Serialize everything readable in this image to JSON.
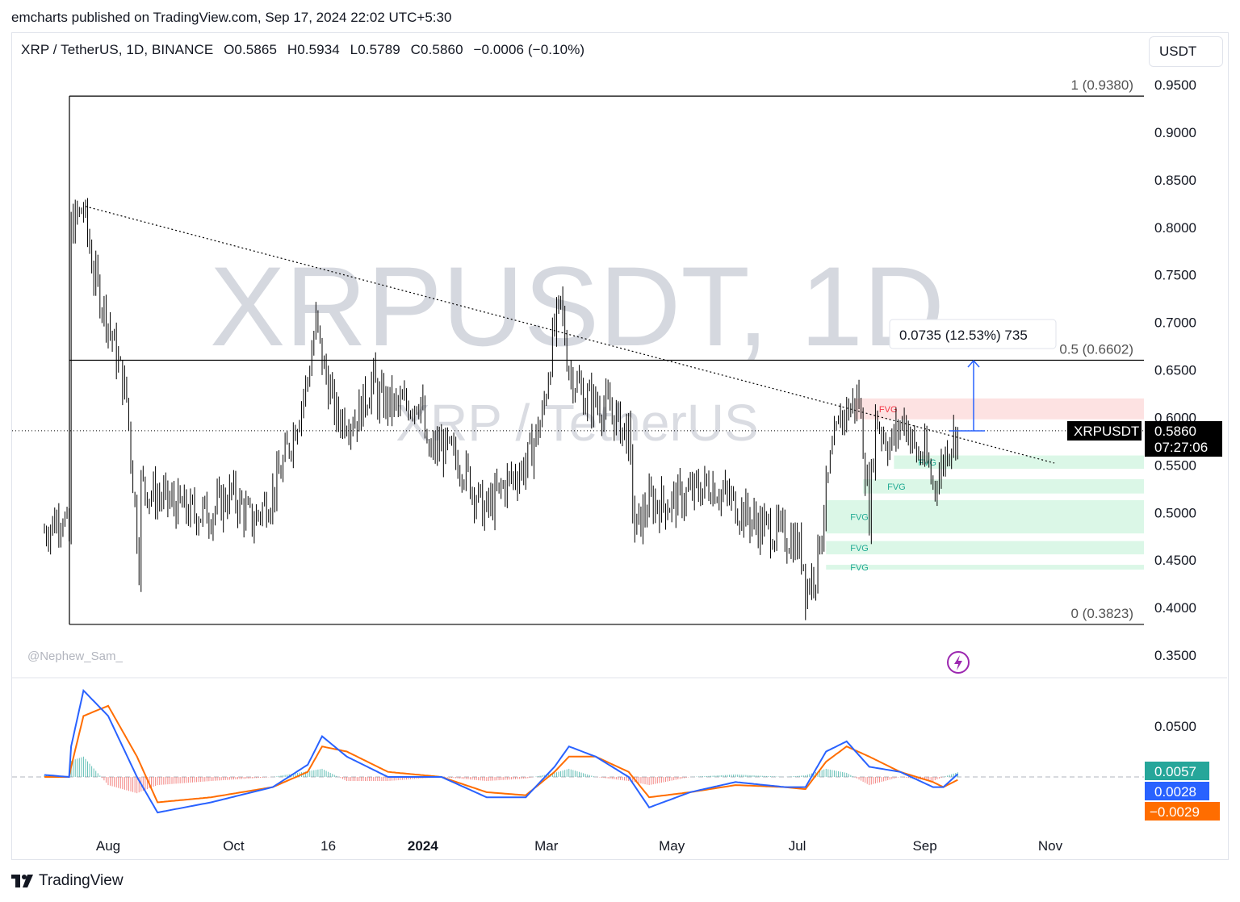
{
  "header": {
    "published": "emcharts published on TradingView.com, Sep 17, 2024 22:02 UTC+5:30"
  },
  "legend": {
    "symbol": "XRP / TetherUS, 1D, BINANCE",
    "open": "O0.5865",
    "high": "H0.5934",
    "low": "L0.5789",
    "close": "C0.5860",
    "change": "−0.0006 (−0.10%)"
  },
  "currency_button": "USDT",
  "watermark": {
    "big": "XRPUSDT, 1D",
    "small": "XRP / TetherUS"
  },
  "author_tag": "@Nephew_Sam_",
  "footer": {
    "brand": "TradingView"
  },
  "colors": {
    "candle": "#000000",
    "macd_line": "#2962ff",
    "signal_line": "#ff6d00",
    "hist_pos": "#26a69a",
    "hist_neg": "#ef5350",
    "fvg_bull": "#d9f7e6",
    "fvg_bear": "#fde0e0",
    "measure": "#2962ff",
    "lightning": "#9c27b0"
  },
  "price_axis": {
    "ticks": [
      "0.9500",
      "0.9000",
      "0.8500",
      "0.8000",
      "0.7500",
      "0.7000",
      "0.6500",
      "0.6000",
      "0.5500",
      "0.5000",
      "0.4500",
      "0.4000",
      "0.3500"
    ],
    "current_symbol": "XRPUSDT",
    "current_price": "0.5860",
    "countdown": "07:27:06"
  },
  "macd_axis": {
    "tick": "0.0500",
    "histogram": "0.0057",
    "macd": "0.0028",
    "signal": "−0.0029"
  },
  "time_axis": [
    "Aug",
    "Oct",
    "16",
    "2024",
    "Mar",
    "May",
    "Jul",
    "Sep",
    "Nov"
  ],
  "fib": {
    "top": "1 (0.9380)",
    "mid": "0.5 (0.6602)",
    "bottom": "0 (0.3823)"
  },
  "measure": {
    "label": "0.0735 (12.53%) 735"
  },
  "fvg_label": "FVG",
  "chart_data": {
    "type": "candlestick",
    "title": "XRPUSDT, 1D",
    "ylabel": "",
    "ylim": [
      0.33,
      0.97
    ],
    "x_range": [
      "2023-07-01",
      "2024-11-20"
    ],
    "fib_levels": [
      {
        "level": 1,
        "price": 0.938
      },
      {
        "level": 0.5,
        "price": 0.6602
      },
      {
        "level": 0,
        "price": 0.3823
      }
    ],
    "last_price": 0.586,
    "trendline": {
      "from": [
        "2023-07-21",
        0.822
      ],
      "to": [
        "2024-11-03",
        0.552
      ]
    },
    "measure": {
      "from": 0.586,
      "to": 0.6595,
      "delta": 0.0735,
      "pct": 12.53,
      "ticks": 735
    },
    "fvg_zones": [
      {
        "kind": "bearish",
        "low": 0.598,
        "high": 0.62,
        "start": "2024-07-29"
      },
      {
        "kind": "bullish",
        "low": 0.546,
        "high": 0.56,
        "start": "2024-08-17"
      },
      {
        "kind": "bullish",
        "low": 0.52,
        "high": 0.535,
        "start": "2024-08-02"
      },
      {
        "kind": "bullish",
        "low": 0.478,
        "high": 0.513,
        "start": "2024-07-15"
      },
      {
        "kind": "bullish",
        "low": 0.456,
        "high": 0.47,
        "start": "2024-07-15"
      },
      {
        "kind": "bullish",
        "low": 0.44,
        "high": 0.445,
        "start": "2024-07-15"
      }
    ],
    "price_series": {
      "dates": [
        "2023-07-01",
        "2023-07-10",
        "2023-07-13",
        "2023-07-14",
        "2023-07-20",
        "2023-07-25",
        "2023-08-01",
        "2023-08-10",
        "2023-08-16",
        "2023-08-17",
        "2023-08-22",
        "2023-09-01",
        "2023-09-10",
        "2023-09-20",
        "2023-09-30",
        "2023-10-10",
        "2023-10-20",
        "2023-10-25",
        "2023-11-01",
        "2023-11-06",
        "2023-11-10",
        "2023-11-13",
        "2023-11-20",
        "2023-11-30",
        "2023-12-08",
        "2023-12-10",
        "2023-12-20",
        "2023-12-31",
        "2024-01-03",
        "2024-01-10",
        "2024-01-20",
        "2024-01-31",
        "2024-02-10",
        "2024-02-20",
        "2024-02-28",
        "2024-03-04",
        "2024-03-08",
        "2024-03-12",
        "2024-03-20",
        "2024-03-31",
        "2024-04-10",
        "2024-04-13",
        "2024-04-20",
        "2024-04-30",
        "2024-05-10",
        "2024-05-20",
        "2024-05-31",
        "2024-06-10",
        "2024-06-20",
        "2024-06-30",
        "2024-07-04",
        "2024-07-05",
        "2024-07-10",
        "2024-07-17",
        "2024-07-22",
        "2024-07-31",
        "2024-08-05",
        "2024-08-08",
        "2024-08-15",
        "2024-08-22",
        "2024-08-28",
        "2024-09-01",
        "2024-09-05",
        "2024-09-08",
        "2024-09-12",
        "2024-09-17"
      ],
      "close": [
        0.48,
        0.5,
        0.47,
        0.8,
        0.82,
        0.75,
        0.7,
        0.62,
        0.45,
        0.53,
        0.52,
        0.51,
        0.5,
        0.5,
        0.52,
        0.49,
        0.52,
        0.55,
        0.6,
        0.64,
        0.7,
        0.66,
        0.6,
        0.6,
        0.64,
        0.62,
        0.61,
        0.62,
        0.56,
        0.57,
        0.55,
        0.5,
        0.53,
        0.55,
        0.6,
        0.68,
        0.72,
        0.65,
        0.62,
        0.61,
        0.58,
        0.48,
        0.51,
        0.51,
        0.52,
        0.53,
        0.51,
        0.49,
        0.48,
        0.47,
        0.45,
        0.42,
        0.44,
        0.55,
        0.6,
        0.62,
        0.5,
        0.6,
        0.57,
        0.6,
        0.56,
        0.56,
        0.53,
        0.54,
        0.57,
        0.586
      ]
    },
    "macd_series": {
      "dates": [
        "2023-07-01",
        "2023-07-13",
        "2023-07-14",
        "2023-07-20",
        "2023-08-01",
        "2023-08-15",
        "2023-08-25",
        "2023-09-20",
        "2023-10-20",
        "2023-11-06",
        "2023-11-13",
        "2023-11-25",
        "2023-12-15",
        "2024-01-10",
        "2024-02-01",
        "2024-02-20",
        "2024-03-05",
        "2024-03-12",
        "2024-03-25",
        "2024-04-10",
        "2024-04-20",
        "2024-05-10",
        "2024-06-01",
        "2024-06-25",
        "2024-07-05",
        "2024-07-15",
        "2024-07-25",
        "2024-08-05",
        "2024-08-20",
        "2024-09-05",
        "2024-09-10",
        "2024-09-17"
      ],
      "macd": [
        0.002,
        0.0,
        0.03,
        0.085,
        0.06,
        0.0,
        -0.035,
        -0.025,
        -0.01,
        0.012,
        0.04,
        0.02,
        0.0,
        0.0,
        -0.02,
        -0.02,
        0.01,
        0.03,
        0.02,
        0.0,
        -0.03,
        -0.015,
        -0.005,
        -0.01,
        -0.01,
        0.025,
        0.035,
        0.01,
        0.005,
        -0.01,
        -0.01,
        0.0028
      ],
      "signal": [
        0.0,
        0.0,
        0.01,
        0.06,
        0.07,
        0.02,
        -0.025,
        -0.02,
        -0.01,
        0.005,
        0.03,
        0.025,
        0.005,
        0.0,
        -0.015,
        -0.018,
        0.005,
        0.02,
        0.02,
        0.005,
        -0.02,
        -0.015,
        -0.008,
        -0.01,
        -0.012,
        0.015,
        0.03,
        0.02,
        0.005,
        -0.005,
        -0.01,
        -0.0029
      ]
    }
  }
}
